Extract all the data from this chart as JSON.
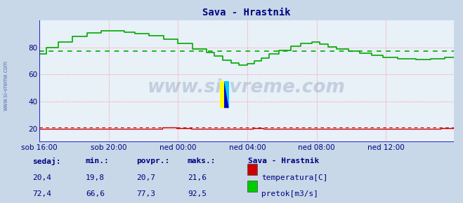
{
  "title": "Sava - Hrastnik",
  "title_color": "#000080",
  "bg_color": "#c8d8e8",
  "plot_bg_color": "#e8f0f8",
  "xlim": [
    0,
    287
  ],
  "ylim": [
    10,
    100
  ],
  "yticks": [
    20,
    40,
    60,
    80
  ],
  "xlabel_ticks": [
    0,
    48,
    96,
    144,
    192,
    240,
    287
  ],
  "xlabel_labels": [
    "sob 16:00",
    "sob 20:00",
    "ned 00:00",
    "ned 04:00",
    "ned 08:00",
    "ned 12:00",
    ""
  ],
  "grid_color": "#ff8888",
  "grid_style": ":",
  "avg_line_color": "#00aa00",
  "avg_line_style": "--",
  "avg_value_flow": 77.3,
  "avg_value_temp": 20.7,
  "temp_color": "#cc0000",
  "flow_color": "#00aa00",
  "axis_color": "#0000cc",
  "watermark": "www.si-vreme.com",
  "watermark_color": "#000080",
  "watermark_alpha": 0.18,
  "legend_title": "Sava - Hrastnik",
  "legend_color": "#000080",
  "stats_headers": [
    "sedaj:",
    "min.:",
    "povpr.:",
    "maks.:"
  ],
  "stats_temp": [
    "20,4",
    "19,8",
    "20,7",
    "21,6"
  ],
  "stats_flow": [
    "72,4",
    "66,6",
    "77,3",
    "92,5"
  ],
  "label_temp": "temperatura[C]",
  "label_flow": "pretok[m3/s]",
  "temp_swatch": "#cc0000",
  "flow_swatch": "#00cc00",
  "left_label": "www.si-vreme.com",
  "left_label_color": "#4466aa",
  "arrow_color": "#cc0000"
}
